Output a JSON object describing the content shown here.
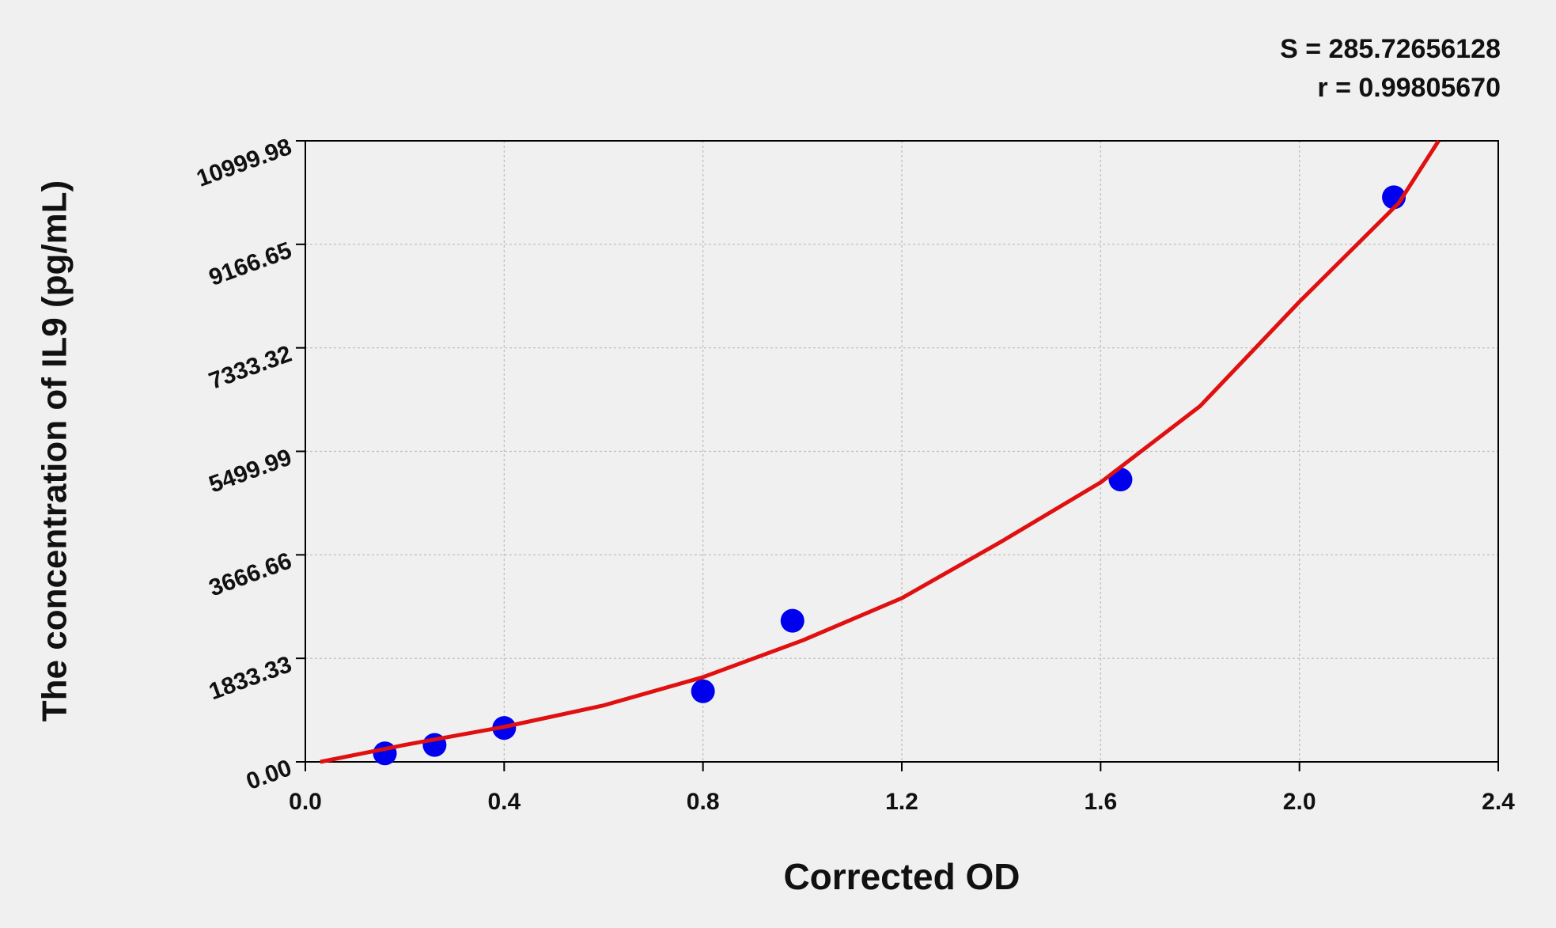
{
  "chart_data": {
    "type": "scatter",
    "annotations": [
      "S = 285.72656128",
      "r = 0.99805670"
    ],
    "x_label": "Corrected OD",
    "y_label": "The concentration of IL9 (pg/mL)",
    "xlim": [
      0,
      2.4
    ],
    "ylim": [
      0,
      10999.98
    ],
    "xticks": [
      {
        "value": 0,
        "label": "0.0"
      },
      0.4,
      0.8,
      1.2,
      1.6,
      {
        "value": 2,
        "label": "2.0"
      },
      2.4
    ],
    "yticks": [
      {
        "value": 0,
        "label": "0.00"
      },
      1833.33,
      3666.66,
      5499.99,
      7333.32,
      9166.65,
      10999.98
    ],
    "grid": true,
    "points": {
      "color": "#0000ee",
      "x": [
        0.16,
        0.26,
        0.4,
        0.8,
        0.98,
        1.64,
        2.19
      ],
      "y": [
        150,
        300,
        600,
        1250,
        2500,
        5000,
        10000
      ]
    },
    "curve": {
      "color": "#e01010",
      "x": [
        0.03,
        0.2,
        0.4,
        0.6,
        0.8,
        1.0,
        1.2,
        1.4,
        1.6,
        1.8,
        2.0,
        2.2,
        2.28
      ],
      "y": [
        0,
        300,
        620,
        1000,
        1500,
        2150,
        2900,
        3900,
        4950,
        6300,
        8150,
        9900,
        11000
      ]
    }
  }
}
